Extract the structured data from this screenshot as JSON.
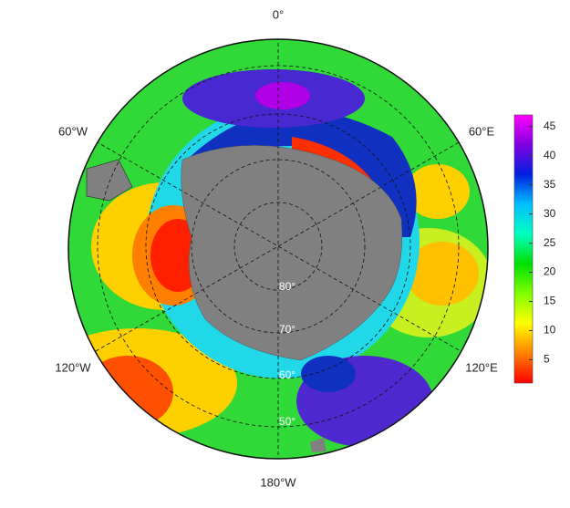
{
  "map": {
    "longitude_labels": [
      "0°",
      "60°E",
      "120°E",
      "180°W",
      "120°W",
      "60°W"
    ],
    "latitude_labels": [
      "80°",
      "70°",
      "60°",
      "50°"
    ]
  },
  "colorbar": {
    "lim": [
      1,
      47
    ],
    "ticks": [
      5,
      10,
      15,
      20,
      25,
      30,
      35,
      40,
      45
    ],
    "colors": [
      "#ff0000",
      "#ff8000",
      "#ffff00",
      "#80ff00",
      "#00e000",
      "#00ffc0",
      "#00c0ff",
      "#0020e0",
      "#8000e0",
      "#ff00ff"
    ]
  }
}
